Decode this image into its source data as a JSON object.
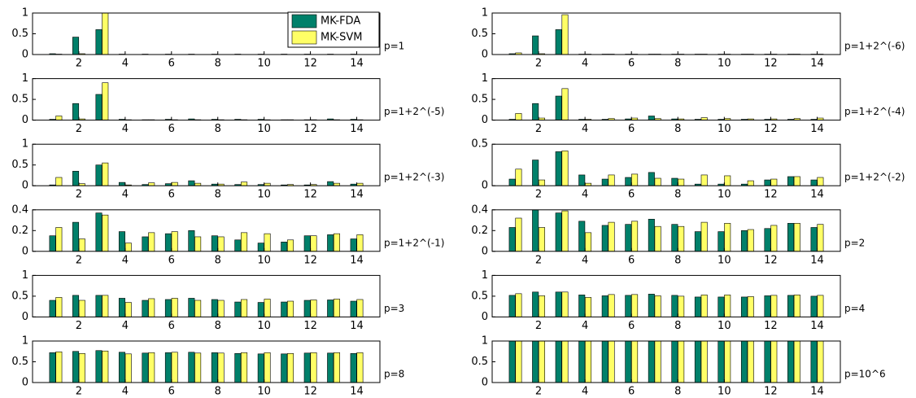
{
  "chart_data": [
    {
      "type": "bar",
      "annotation": "p=1",
      "legend": "upper right",
      "x": [
        1,
        2,
        3,
        4,
        5,
        6,
        7,
        8,
        9,
        10,
        11,
        12,
        13,
        14
      ],
      "xlim": [
        0,
        15
      ],
      "xticks": [
        2,
        4,
        6,
        8,
        10,
        12,
        14
      ],
      "ylim": [
        0,
        1
      ],
      "yticks": [
        0,
        0.5,
        1
      ],
      "series": [
        {
          "name": "MK-FDA",
          "color": "#00806a",
          "values": [
            0.02,
            0.42,
            0.6,
            0.01,
            0.01,
            0.01,
            0.01,
            0.01,
            0.01,
            0.01,
            0.01,
            0.01,
            0.01,
            0.01
          ]
        },
        {
          "name": "MK-SVM",
          "color": "#ffff66",
          "values": [
            0.01,
            0.02,
            1.0,
            0,
            0,
            0,
            0,
            0,
            0,
            0,
            0,
            0,
            0,
            0
          ]
        }
      ]
    },
    {
      "type": "bar",
      "annotation": "p=1+2^(-6)",
      "x": [
        1,
        2,
        3,
        4,
        5,
        6,
        7,
        8,
        9,
        10,
        11,
        12,
        13,
        14
      ],
      "xlim": [
        0,
        15
      ],
      "xticks": [
        2,
        4,
        6,
        8,
        10,
        12,
        14
      ],
      "ylim": [
        0,
        1
      ],
      "yticks": [
        0,
        0.5,
        1
      ],
      "series": [
        {
          "name": "MK-FDA",
          "color": "#00806a",
          "values": [
            0.02,
            0.45,
            0.6,
            0.01,
            0.01,
            0.01,
            0.01,
            0.01,
            0.01,
            0.01,
            0.01,
            0.01,
            0.01,
            0.01
          ]
        },
        {
          "name": "MK-SVM",
          "color": "#ffff66",
          "values": [
            0.04,
            0.02,
            0.96,
            0.01,
            0.01,
            0.01,
            0.01,
            0.01,
            0.01,
            0.01,
            0.01,
            0.01,
            0.01,
            0.01
          ]
        }
      ]
    },
    {
      "type": "bar",
      "annotation": "p=1+2^(-5)",
      "x": [
        1,
        2,
        3,
        4,
        5,
        6,
        7,
        8,
        9,
        10,
        11,
        12,
        13,
        14
      ],
      "xlim": [
        0,
        15
      ],
      "xticks": [
        2,
        4,
        6,
        8,
        10,
        12,
        14
      ],
      "ylim": [
        0,
        1
      ],
      "yticks": [
        0,
        0.5,
        1
      ],
      "series": [
        {
          "name": "MK-FDA",
          "color": "#00806a",
          "values": [
            0.02,
            0.4,
            0.62,
            0.02,
            0.01,
            0.02,
            0.03,
            0.02,
            0.02,
            0.02,
            0.01,
            0.01,
            0.03,
            0.02
          ]
        },
        {
          "name": "MK-SVM",
          "color": "#ffff66",
          "values": [
            0.1,
            0.03,
            0.9,
            0.01,
            0.01,
            0.01,
            0.01,
            0.01,
            0.01,
            0.01,
            0.01,
            0.01,
            0.01,
            0.01
          ]
        }
      ]
    },
    {
      "type": "bar",
      "annotation": "p=1+2^(-4)",
      "x": [
        1,
        2,
        3,
        4,
        5,
        6,
        7,
        8,
        9,
        10,
        11,
        12,
        13,
        14
      ],
      "xlim": [
        0,
        15
      ],
      "xticks": [
        2,
        4,
        6,
        8,
        10,
        12,
        14
      ],
      "ylim": [
        0,
        1
      ],
      "yticks": [
        0,
        0.5,
        1
      ],
      "series": [
        {
          "name": "MK-FDA",
          "color": "#00806a",
          "values": [
            0.02,
            0.4,
            0.58,
            0.02,
            0.02,
            0.03,
            0.1,
            0.03,
            0.02,
            0.02,
            0.02,
            0.02,
            0.02,
            0.02
          ]
        },
        {
          "name": "MK-SVM",
          "color": "#ffff66",
          "values": [
            0.16,
            0.05,
            0.76,
            0.02,
            0.04,
            0.05,
            0.04,
            0.03,
            0.06,
            0.04,
            0.03,
            0.03,
            0.04,
            0.05
          ]
        }
      ]
    },
    {
      "type": "bar",
      "annotation": "p=1+2^(-3)",
      "x": [
        1,
        2,
        3,
        4,
        5,
        6,
        7,
        8,
        9,
        10,
        11,
        12,
        13,
        14
      ],
      "xlim": [
        0,
        15
      ],
      "xticks": [
        2,
        4,
        6,
        8,
        10,
        12,
        14
      ],
      "ylim": [
        0,
        1
      ],
      "yticks": [
        0,
        0.5,
        1
      ],
      "series": [
        {
          "name": "MK-FDA",
          "color": "#00806a",
          "values": [
            0.02,
            0.35,
            0.5,
            0.08,
            0.03,
            0.05,
            0.12,
            0.04,
            0.03,
            0.03,
            0.02,
            0.02,
            0.1,
            0.04
          ]
        },
        {
          "name": "MK-SVM",
          "color": "#ffff66",
          "values": [
            0.2,
            0.05,
            0.55,
            0.02,
            0.07,
            0.08,
            0.06,
            0.04,
            0.09,
            0.06,
            0.03,
            0.03,
            0.06,
            0.06
          ]
        }
      ]
    },
    {
      "type": "bar",
      "annotation": "p=1+2^(-2)",
      "x": [
        1,
        2,
        3,
        4,
        5,
        6,
        7,
        8,
        9,
        10,
        11,
        12,
        13,
        14
      ],
      "xlim": [
        0,
        15
      ],
      "xticks": [
        2,
        4,
        6,
        8,
        10,
        12,
        14
      ],
      "ylim": [
        0,
        0.5
      ],
      "yticks": [
        0,
        0.5
      ],
      "series": [
        {
          "name": "MK-FDA",
          "color": "#00806a",
          "values": [
            0.08,
            0.31,
            0.41,
            0.13,
            0.08,
            0.1,
            0.16,
            0.09,
            0.02,
            0.02,
            0.02,
            0.07,
            0.11,
            0.07
          ]
        },
        {
          "name": "MK-SVM",
          "color": "#ffff66",
          "values": [
            0.2,
            0.07,
            0.42,
            0.03,
            0.13,
            0.14,
            0.09,
            0.08,
            0.13,
            0.12,
            0.06,
            0.08,
            0.11,
            0.1
          ]
        }
      ]
    },
    {
      "type": "bar",
      "annotation": "p=1+2^(-1)",
      "x": [
        1,
        2,
        3,
        4,
        5,
        6,
        7,
        8,
        9,
        10,
        11,
        12,
        13,
        14
      ],
      "xlim": [
        0,
        15
      ],
      "xticks": [
        2,
        4,
        6,
        8,
        10,
        12,
        14
      ],
      "ylim": [
        0,
        0.4
      ],
      "yticks": [
        0,
        0.2,
        0.4
      ],
      "series": [
        {
          "name": "MK-FDA",
          "color": "#00806a",
          "values": [
            0.15,
            0.28,
            0.37,
            0.19,
            0.14,
            0.17,
            0.2,
            0.15,
            0.11,
            0.08,
            0.09,
            0.15,
            0.16,
            0.12
          ]
        },
        {
          "name": "MK-SVM",
          "color": "#ffff66",
          "values": [
            0.23,
            0.12,
            0.35,
            0.08,
            0.18,
            0.19,
            0.14,
            0.14,
            0.18,
            0.17,
            0.11,
            0.15,
            0.17,
            0.16
          ]
        }
      ]
    },
    {
      "type": "bar",
      "annotation": "p=2",
      "x": [
        1,
        2,
        3,
        4,
        5,
        6,
        7,
        8,
        9,
        10,
        11,
        12,
        13,
        14
      ],
      "xlim": [
        0,
        15
      ],
      "xticks": [
        2,
        4,
        6,
        8,
        10,
        12,
        14
      ],
      "ylim": [
        0,
        0.4
      ],
      "yticks": [
        0,
        0.2,
        0.4
      ],
      "series": [
        {
          "name": "MK-FDA",
          "color": "#00806a",
          "values": [
            0.23,
            0.4,
            0.37,
            0.29,
            0.25,
            0.26,
            0.31,
            0.26,
            0.19,
            0.19,
            0.2,
            0.22,
            0.27,
            0.23
          ]
        },
        {
          "name": "MK-SVM",
          "color": "#ffff66",
          "values": [
            0.32,
            0.23,
            0.39,
            0.18,
            0.28,
            0.29,
            0.24,
            0.24,
            0.28,
            0.27,
            0.21,
            0.25,
            0.27,
            0.26
          ]
        }
      ]
    },
    {
      "type": "bar",
      "annotation": "p=3",
      "x": [
        1,
        2,
        3,
        4,
        5,
        6,
        7,
        8,
        9,
        10,
        11,
        12,
        13,
        14
      ],
      "xlim": [
        0,
        15
      ],
      "xticks": [
        2,
        4,
        6,
        8,
        10,
        12,
        14
      ],
      "ylim": [
        0,
        1
      ],
      "yticks": [
        0,
        0.5,
        1
      ],
      "series": [
        {
          "name": "MK-FDA",
          "color": "#00806a",
          "values": [
            0.4,
            0.52,
            0.52,
            0.45,
            0.4,
            0.42,
            0.45,
            0.42,
            0.36,
            0.35,
            0.36,
            0.4,
            0.41,
            0.38
          ]
        },
        {
          "name": "MK-SVM",
          "color": "#ffff66",
          "values": [
            0.47,
            0.4,
            0.52,
            0.35,
            0.44,
            0.45,
            0.4,
            0.4,
            0.42,
            0.43,
            0.38,
            0.41,
            0.43,
            0.42
          ]
        }
      ]
    },
    {
      "type": "bar",
      "annotation": "p=4",
      "x": [
        1,
        2,
        3,
        4,
        5,
        6,
        7,
        8,
        9,
        10,
        11,
        12,
        13,
        14
      ],
      "xlim": [
        0,
        15
      ],
      "xticks": [
        2,
        4,
        6,
        8,
        10,
        12,
        14
      ],
      "ylim": [
        0,
        1
      ],
      "yticks": [
        0,
        0.5,
        1
      ],
      "series": [
        {
          "name": "MK-FDA",
          "color": "#00806a",
          "values": [
            0.52,
            0.6,
            0.6,
            0.53,
            0.51,
            0.52,
            0.55,
            0.52,
            0.48,
            0.48,
            0.48,
            0.51,
            0.52,
            0.5
          ]
        },
        {
          "name": "MK-SVM",
          "color": "#ffff66",
          "values": [
            0.56,
            0.51,
            0.6,
            0.47,
            0.54,
            0.54,
            0.51,
            0.5,
            0.53,
            0.53,
            0.49,
            0.52,
            0.53,
            0.52
          ]
        }
      ]
    },
    {
      "type": "bar",
      "annotation": "p=8",
      "x": [
        1,
        2,
        3,
        4,
        5,
        6,
        7,
        8,
        9,
        10,
        11,
        12,
        13,
        14
      ],
      "xlim": [
        0,
        15
      ],
      "xticks": [
        2,
        4,
        6,
        8,
        10,
        12,
        14
      ],
      "ylim": [
        0,
        1
      ],
      "yticks": [
        0,
        0.5,
        1
      ],
      "series": [
        {
          "name": "MK-FDA",
          "color": "#00806a",
          "values": [
            0.72,
            0.75,
            0.77,
            0.73,
            0.71,
            0.72,
            0.73,
            0.72,
            0.7,
            0.69,
            0.69,
            0.71,
            0.71,
            0.7
          ]
        },
        {
          "name": "MK-SVM",
          "color": "#ffff66",
          "values": [
            0.74,
            0.7,
            0.76,
            0.69,
            0.72,
            0.73,
            0.71,
            0.71,
            0.72,
            0.72,
            0.7,
            0.72,
            0.72,
            0.72
          ]
        }
      ]
    },
    {
      "type": "bar",
      "annotation": "p=10^6",
      "x": [
        1,
        2,
        3,
        4,
        5,
        6,
        7,
        8,
        9,
        10,
        11,
        12,
        13,
        14
      ],
      "xlim": [
        0,
        15
      ],
      "xticks": [
        2,
        4,
        6,
        8,
        10,
        12,
        14
      ],
      "ylim": [
        0,
        1
      ],
      "yticks": [
        0,
        0.5,
        1
      ],
      "series": [
        {
          "name": "MK-FDA",
          "color": "#00806a",
          "values": [
            1,
            1,
            1,
            1,
            1,
            1,
            1,
            1,
            1,
            1,
            1,
            1,
            1,
            1
          ]
        },
        {
          "name": "MK-SVM",
          "color": "#ffff66",
          "values": [
            1,
            1,
            1,
            1,
            1,
            1,
            1,
            1,
            1,
            1,
            1,
            1,
            1,
            1
          ]
        }
      ]
    }
  ]
}
